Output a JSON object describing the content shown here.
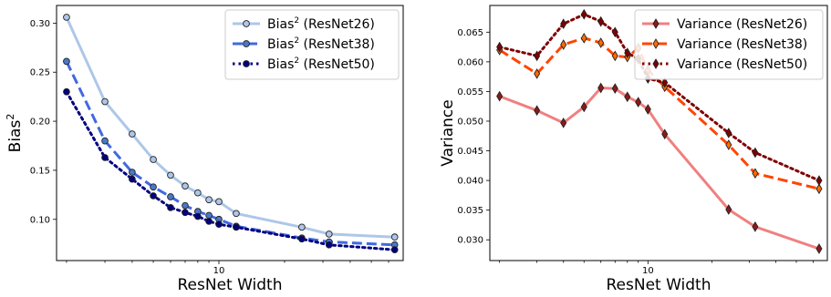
{
  "chart_data": [
    {
      "type": "line",
      "xlabel": "ResNet Width",
      "ylabel": "Bias",
      "ylabel_superscript": "2",
      "xscale": "log",
      "xlim": [
        1.8,
        70
      ],
      "ylim": [
        0.058,
        0.318
      ],
      "yticks": [
        0.1,
        0.15,
        0.2,
        0.25,
        0.3
      ],
      "ytick_labels": [
        "0.10",
        "0.15",
        "0.20",
        "0.25",
        "0.30"
      ],
      "xticks": [
        10
      ],
      "xtick_labels": [
        "10"
      ],
      "legend_position": "upper right",
      "series": [
        {
          "name": "Bias",
          "name_sup": "2",
          "name_suffix": " (ResNet26)",
          "color": "#aec7e8",
          "line_style": "solid",
          "marker_fill": "#aec7e8",
          "x": [
            2,
            3,
            4,
            5,
            6,
            7,
            8,
            9,
            10,
            12,
            24,
            32,
            64
          ],
          "y": [
            0.306,
            0.22,
            0.187,
            0.161,
            0.145,
            0.134,
            0.127,
            0.12,
            0.118,
            0.106,
            0.092,
            0.085,
            0.082
          ]
        },
        {
          "name": "Bias",
          "name_sup": "2",
          "name_suffix": " (ResNet38)",
          "color": "#4169e1",
          "line_style": "dashed",
          "marker_fill": "#4a78c8",
          "x": [
            2,
            3,
            4,
            5,
            6,
            7,
            8,
            9,
            10,
            12,
            24,
            32,
            64
          ],
          "y": [
            0.261,
            0.18,
            0.148,
            0.133,
            0.123,
            0.114,
            0.108,
            0.104,
            0.1,
            0.093,
            0.081,
            0.077,
            0.074
          ]
        },
        {
          "name": "Bias",
          "name_sup": "2",
          "name_suffix": " (ResNet50)",
          "color": "#000080",
          "line_style": "dotted",
          "marker_fill": "#000080",
          "x": [
            2,
            3,
            4,
            5,
            6,
            7,
            8,
            9,
            10,
            12,
            24,
            32,
            64
          ],
          "y": [
            0.23,
            0.163,
            0.141,
            0.124,
            0.112,
            0.107,
            0.103,
            0.098,
            0.095,
            0.092,
            0.08,
            0.074,
            0.069
          ]
        }
      ]
    },
    {
      "type": "line",
      "xlabel": "ResNet Width",
      "ylabel": "Variance",
      "xscale": "log",
      "xlim": [
        1.8,
        70
      ],
      "ylim": [
        0.0265,
        0.0695
      ],
      "yticks": [
        0.03,
        0.035,
        0.04,
        0.045,
        0.05,
        0.055,
        0.06,
        0.065
      ],
      "ytick_labels": [
        "0.030",
        "0.035",
        "0.040",
        "0.045",
        "0.050",
        "0.055",
        "0.060",
        "0.065"
      ],
      "xticks": [
        10
      ],
      "xtick_labels": [
        "10"
      ],
      "legend_position": "upper right",
      "series": [
        {
          "name": "Variance (ResNet26)",
          "color": "#f08080",
          "line_style": "solid",
          "marker_fill": "#8b1a1a",
          "x": [
            2,
            3,
            4,
            5,
            6,
            7,
            8,
            9,
            10,
            12,
            24,
            32,
            64
          ],
          "y": [
            0.0542,
            0.0518,
            0.0497,
            0.0524,
            0.0556,
            0.0555,
            0.0541,
            0.0532,
            0.052,
            0.0478,
            0.0351,
            0.0322,
            0.0285
          ]
        },
        {
          "name": "Variance (ResNet38)",
          "color": "#ff4500",
          "line_style": "dashed",
          "marker_fill": "#ff6a00",
          "x": [
            2,
            3,
            4,
            5,
            6,
            7,
            8,
            9,
            10,
            12,
            24,
            32,
            64
          ],
          "y": [
            0.062,
            0.058,
            0.0629,
            0.064,
            0.0632,
            0.061,
            0.0608,
            0.0623,
            0.0586,
            0.0558,
            0.046,
            0.0412,
            0.0386
          ]
        },
        {
          "name": "Variance (ResNet50)",
          "color": "#800000",
          "line_style": "dotted",
          "marker_fill": "#800000",
          "x": [
            2,
            3,
            4,
            5,
            6,
            7,
            8,
            9,
            10,
            12,
            24,
            32,
            64
          ],
          "y": [
            0.0625,
            0.061,
            0.0664,
            0.068,
            0.0668,
            0.065,
            0.0615,
            0.0605,
            0.0572,
            0.0565,
            0.048,
            0.0447,
            0.04
          ]
        }
      ]
    }
  ]
}
